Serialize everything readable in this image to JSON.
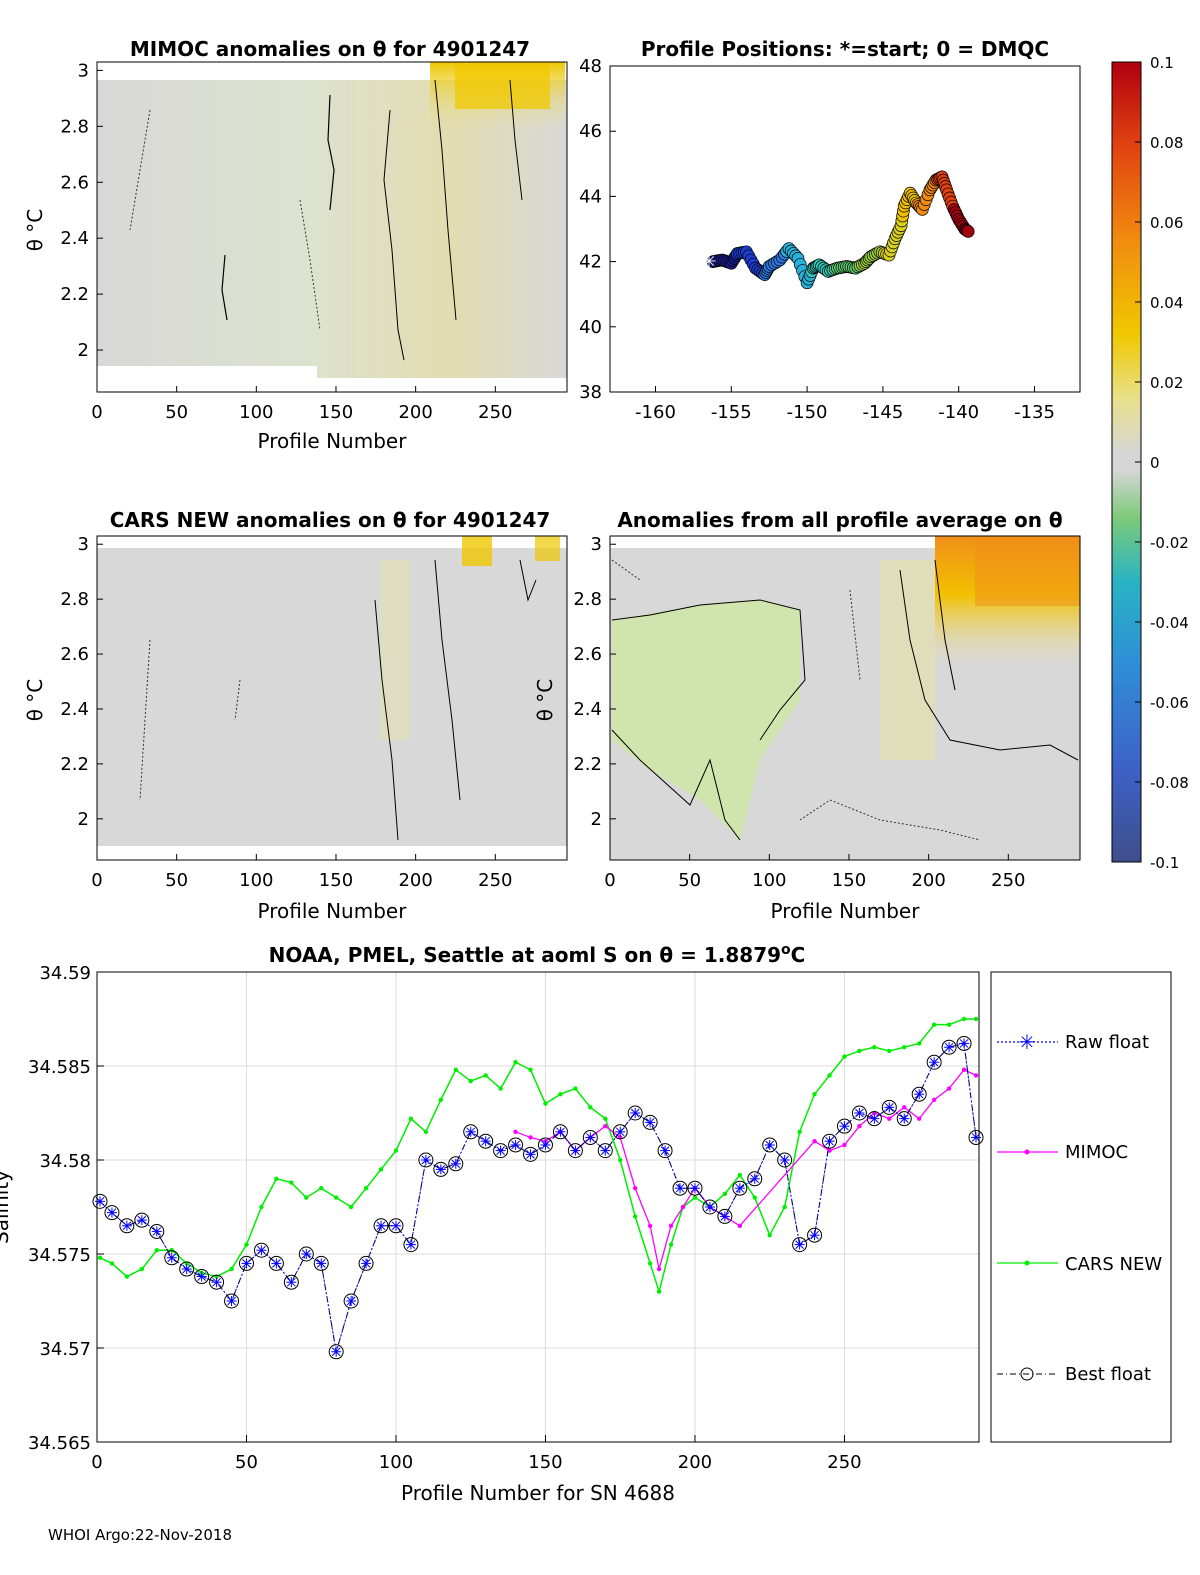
{
  "footer": "WHOI Argo:22-Nov-2018",
  "colorbar": {
    "ticks": [
      "0.1",
      "0.08",
      "0.06",
      "0.04",
      "0.02",
      "0",
      "-0.02",
      "-0.04",
      "-0.06",
      "-0.08",
      "-0.1"
    ],
    "range": [
      -0.1,
      0.1
    ],
    "colormap": "parula-like"
  },
  "chart_data": [
    {
      "type": "heatmap",
      "title": "MIMOC anomalies on θ  for 4901247",
      "xlabel": "Profile Number",
      "ylabel": "θ °C",
      "xlim": [
        0,
        295
      ],
      "ylim": [
        1.85,
        3.03
      ],
      "xticks": [
        "0",
        "50",
        "100",
        "150",
        "200",
        "250"
      ],
      "yticks": [
        "2",
        "2.2",
        "2.4",
        "2.6",
        "2.8",
        "3"
      ],
      "notes": "mostly near-zero anomaly; positive (yellow) patch around profiles 220-285 near theta 2.9-3.0"
    },
    {
      "type": "scatter",
      "title": "Profile Positions: *=start; 0 = DMQC",
      "xlabel": "",
      "ylabel": "",
      "xlim": [
        -163,
        -132
      ],
      "ylim": [
        38,
        48
      ],
      "xticks": [
        "-160",
        "-155",
        "-150",
        "-145",
        "-140",
        "-135"
      ],
      "yticks": [
        "38",
        "40",
        "42",
        "44",
        "46",
        "48"
      ],
      "track_lon": [
        -156.2,
        -155.6,
        -155.0,
        -154.6,
        -154.0,
        -153.4,
        -152.8,
        -152.5,
        -151.8,
        -151.2,
        -150.6,
        -150.0,
        -149.6,
        -149.2,
        -148.6,
        -148.0,
        -147.4,
        -146.8,
        -146.2,
        -145.8,
        -145.2,
        -144.6,
        -144.2,
        -143.8,
        -143.6,
        -143.2,
        -142.8,
        -142.4,
        -141.9,
        -141.5,
        -141.1,
        -140.8,
        -140.4,
        -140.0,
        -139.6,
        -139.3
      ],
      "track_lat": [
        42.0,
        42.05,
        41.95,
        42.25,
        42.3,
        41.8,
        41.6,
        41.85,
        42.05,
        42.4,
        42.1,
        41.35,
        41.8,
        41.9,
        41.7,
        41.8,
        41.85,
        41.8,
        41.95,
        42.15,
        42.3,
        42.2,
        42.7,
        43.1,
        43.7,
        44.1,
        43.8,
        43.6,
        44.2,
        44.5,
        44.6,
        44.2,
        43.7,
        43.3,
        43.0,
        42.9
      ]
    },
    {
      "type": "heatmap",
      "title": "CARS NEW anomalies on θ for 4901247",
      "xlabel": "Profile Number",
      "ylabel": "θ °C",
      "xlim": [
        0,
        295
      ],
      "ylim": [
        1.85,
        3.03
      ],
      "xticks": [
        "0",
        "50",
        "100",
        "150",
        "200",
        "250"
      ],
      "yticks": [
        "2",
        "2.2",
        "2.4",
        "2.6",
        "2.8",
        "3"
      ],
      "notes": "near-zero anomaly; small positive patches near profiles 240 and 285 at theta 3.0"
    },
    {
      "type": "heatmap",
      "title": "Anomalies from all profile average on θ",
      "xlabel": "Profile Number",
      "ylabel": "θ °C",
      "xlim": [
        0,
        295
      ],
      "ylim": [
        1.85,
        3.03
      ],
      "xticks": [
        "0",
        "50",
        "100",
        "150",
        "200",
        "250"
      ],
      "yticks": [
        "2",
        "2.2",
        "2.4",
        "2.6",
        "2.8",
        "3"
      ],
      "notes": "negative (green) region profiles 0-90 theta 2.2-2.7; strong positive (orange) region profiles 220-295 theta 2.6-3.0"
    },
    {
      "type": "line",
      "title": "NOAA, PMEL, Seattle at aoml S on θ = 1.8879",
      "title_sup": "o",
      "title_end": "C",
      "xlabel": "Profile Number for SN 4688",
      "ylabel": "Salinity",
      "xlim": [
        0,
        295
      ],
      "ylim": [
        34.565,
        34.59
      ],
      "xticks": [
        "0",
        "50",
        "100",
        "150",
        "200",
        "250"
      ],
      "yticks": [
        "34.565",
        "34.57",
        "34.575",
        "34.58",
        "34.585",
        "34.59"
      ],
      "grid": true,
      "legend_position": "right",
      "series": [
        {
          "name": "Raw float",
          "color": "#0000ff",
          "x": [
            1,
            5,
            10,
            15,
            20,
            25,
            30,
            35,
            40,
            45,
            50,
            55,
            60,
            65,
            70,
            75,
            80,
            85,
            90,
            95,
            100,
            105,
            110,
            115,
            120,
            125,
            130,
            135,
            140,
            145,
            150,
            155,
            160,
            165,
            170,
            175,
            180,
            185,
            190,
            195,
            200,
            205,
            210,
            215,
            220,
            225,
            230,
            235,
            240,
            245,
            250,
            255,
            260,
            265,
            270,
            275,
            280,
            285,
            290,
            294
          ],
          "y": [
            34.5778,
            34.5772,
            34.5765,
            34.5768,
            34.5762,
            34.5748,
            34.5742,
            34.5738,
            34.5735,
            34.5725,
            34.5745,
            34.5752,
            34.5745,
            34.5735,
            34.575,
            34.5745,
            34.5698,
            34.5725,
            34.5745,
            34.5765,
            34.5765,
            34.5755,
            34.58,
            34.5795,
            34.5798,
            34.5815,
            34.581,
            34.5805,
            34.5808,
            34.5803,
            34.5808,
            34.5815,
            34.5805,
            34.5812,
            34.5805,
            34.5815,
            34.5825,
            34.582,
            34.5805,
            34.5785,
            34.5785,
            34.5775,
            34.577,
            34.5785,
            34.579,
            34.5808,
            34.58,
            34.5755,
            34.576,
            34.581,
            34.5818,
            34.5825,
            34.5822,
            34.5828,
            34.5822,
            34.5835,
            34.5852,
            34.586,
            34.5862,
            34.5812
          ]
        },
        {
          "name": "MIMOC",
          "color": "#ff00ff",
          "x": [
            140,
            145,
            150,
            155,
            160,
            165,
            170,
            175,
            180,
            185,
            188,
            192,
            196,
            200,
            205,
            210,
            215,
            240,
            245,
            250,
            255,
            260,
            265,
            270,
            275,
            280,
            285,
            290,
            294
          ],
          "y": [
            34.5815,
            34.5812,
            34.581,
            34.5815,
            34.5805,
            34.5812,
            34.5818,
            34.5812,
            34.5785,
            34.5765,
            34.5742,
            34.5765,
            34.5775,
            34.5785,
            34.5775,
            34.577,
            34.5765,
            34.581,
            34.5805,
            34.5808,
            34.5818,
            34.5825,
            34.5822,
            34.5828,
            34.5822,
            34.5832,
            34.5838,
            34.5848,
            34.5845
          ]
        },
        {
          "name": "CARS NEW",
          "color": "#00ee00",
          "x": [
            1,
            5,
            10,
            15,
            20,
            25,
            30,
            35,
            40,
            45,
            50,
            55,
            60,
            65,
            70,
            75,
            80,
            85,
            90,
            95,
            100,
            105,
            110,
            115,
            120,
            125,
            130,
            135,
            140,
            145,
            150,
            155,
            160,
            165,
            170,
            175,
            180,
            185,
            188,
            192,
            196,
            200,
            205,
            210,
            215,
            220,
            225,
            230,
            235,
            240,
            245,
            250,
            255,
            260,
            265,
            270,
            275,
            280,
            285,
            290,
            294
          ],
          "y": [
            34.5748,
            34.5745,
            34.5738,
            34.5742,
            34.5752,
            34.5752,
            34.5745,
            34.574,
            34.5738,
            34.5742,
            34.5755,
            34.5775,
            34.579,
            34.5788,
            34.578,
            34.5785,
            34.578,
            34.5775,
            34.5785,
            34.5795,
            34.5805,
            34.5822,
            34.5815,
            34.5832,
            34.5848,
            34.5842,
            34.5845,
            34.5838,
            34.5852,
            34.5848,
            34.583,
            34.5835,
            34.5838,
            34.5828,
            34.5822,
            34.58,
            34.577,
            34.5745,
            34.573,
            34.5755,
            34.5775,
            34.578,
            34.5775,
            34.5782,
            34.5792,
            34.578,
            34.576,
            34.5775,
            34.5815,
            34.5835,
            34.5845,
            34.5855,
            34.5858,
            34.586,
            34.5858,
            34.586,
            34.5862,
            34.5872,
            34.5872,
            34.5875,
            34.5875
          ]
        },
        {
          "name": "Best float",
          "color": "#000000",
          "x": [
            1,
            5,
            10,
            15,
            20,
            25,
            30,
            35,
            40,
            45,
            50,
            55,
            60,
            65,
            70,
            75,
            80,
            85,
            90,
            95,
            100,
            105,
            110,
            115,
            120,
            125,
            130,
            135,
            140,
            145,
            150,
            155,
            160,
            165,
            170,
            175,
            180,
            185,
            190,
            195,
            200,
            205,
            210,
            215,
            220,
            225,
            230,
            235,
            240,
            245,
            250,
            255,
            260,
            265,
            270,
            275,
            280,
            285,
            290,
            294
          ],
          "y": [
            34.5778,
            34.5772,
            34.5765,
            34.5768,
            34.5762,
            34.5748,
            34.5742,
            34.5738,
            34.5735,
            34.5725,
            34.5745,
            34.5752,
            34.5745,
            34.5735,
            34.575,
            34.5745,
            34.5698,
            34.5725,
            34.5745,
            34.5765,
            34.5765,
            34.5755,
            34.58,
            34.5795,
            34.5798,
            34.5815,
            34.581,
            34.5805,
            34.5808,
            34.5803,
            34.5808,
            34.5815,
            34.5805,
            34.5812,
            34.5805,
            34.5815,
            34.5825,
            34.582,
            34.5805,
            34.5785,
            34.5785,
            34.5775,
            34.577,
            34.5785,
            34.579,
            34.5808,
            34.58,
            34.5755,
            34.576,
            34.581,
            34.5818,
            34.5825,
            34.5822,
            34.5828,
            34.5822,
            34.5835,
            34.5852,
            34.586,
            34.5862,
            34.5812
          ]
        }
      ]
    }
  ]
}
